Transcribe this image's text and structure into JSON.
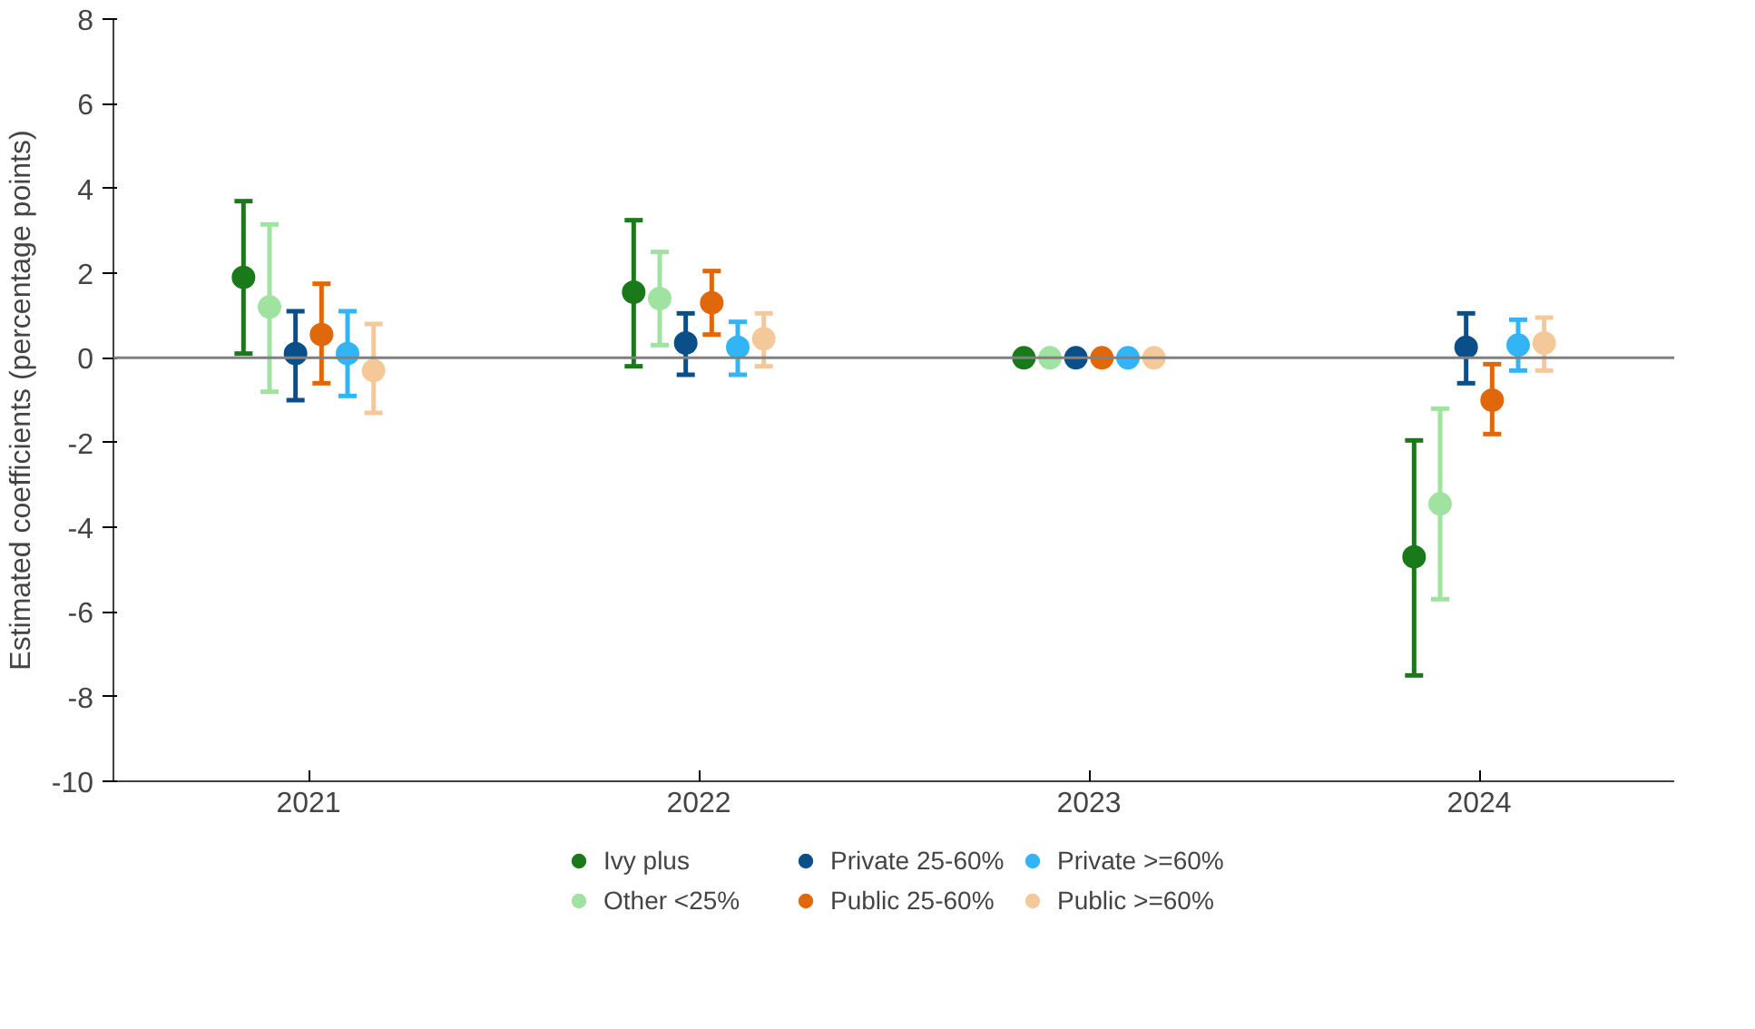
{
  "chart_data": {
    "type": "scatter",
    "ylabel": "Estimated coefficients (percentage points)",
    "categories": [
      "2021",
      "2022",
      "2023",
      "2024"
    ],
    "ylim": [
      -10,
      8
    ],
    "yticks": [
      -10,
      -8,
      -6,
      -4,
      -2,
      0,
      2,
      4,
      6,
      8
    ],
    "grid": false,
    "legend": "bottom",
    "marker": "circle",
    "ref_lines": [
      {
        "axis": "y",
        "value": 0,
        "color": "#808080"
      }
    ],
    "series": [
      {
        "name": "Ivy plus",
        "color": "#1a7a1a",
        "values": [
          1.9,
          1.55,
          0,
          -4.7
        ],
        "errors": [
          [
            0.1,
            3.7
          ],
          [
            -0.2,
            3.25
          ],
          null,
          [
            -7.5,
            -1.95
          ]
        ]
      },
      {
        "name": "Other <25%",
        "color": "#a0e3a0",
        "values": [
          1.2,
          1.4,
          0,
          -3.45
        ],
        "errors": [
          [
            -0.8,
            3.15
          ],
          [
            0.3,
            2.5
          ],
          null,
          [
            -5.7,
            -1.2
          ]
        ]
      },
      {
        "name": "Private 25-60%",
        "color": "#0a4f8a",
        "values": [
          0.1,
          0.35,
          0,
          0.25
        ],
        "errors": [
          [
            -1.0,
            1.1
          ],
          [
            -0.4,
            1.05
          ],
          null,
          [
            -0.6,
            1.05
          ]
        ]
      },
      {
        "name": "Public 25-60%",
        "color": "#e0680a",
        "values": [
          0.55,
          1.3,
          0,
          -1.0
        ],
        "errors": [
          [
            -0.6,
            1.75
          ],
          [
            0.55,
            2.05
          ],
          null,
          [
            -1.8,
            -0.15
          ]
        ]
      },
      {
        "name": "Private >=60%",
        "color": "#33b5f5",
        "values": [
          0.1,
          0.25,
          0,
          0.3
        ],
        "errors": [
          [
            -0.9,
            1.1
          ],
          [
            -0.4,
            0.85
          ],
          null,
          [
            -0.3,
            0.9
          ]
        ]
      },
      {
        "name": "Public >=60%",
        "color": "#f5c89a",
        "values": [
          -0.3,
          0.45,
          0,
          0.35
        ],
        "errors": [
          [
            -1.3,
            0.8
          ],
          [
            -0.2,
            1.05
          ],
          null,
          [
            -0.3,
            0.95
          ]
        ]
      }
    ]
  }
}
